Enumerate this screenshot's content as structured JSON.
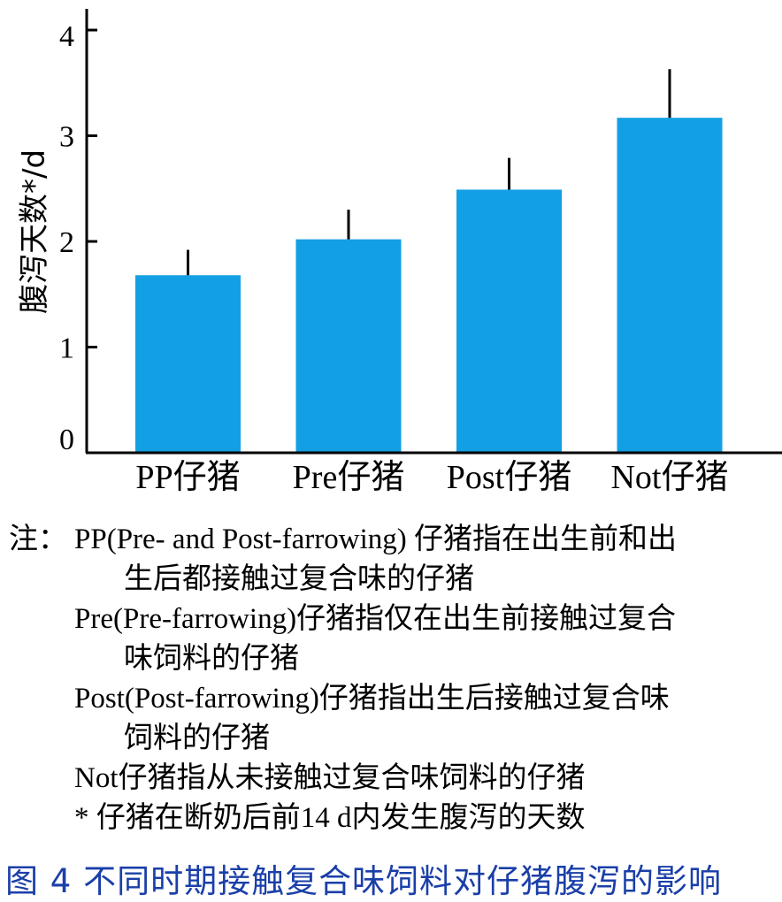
{
  "chart_data": {
    "type": "bar",
    "categories": [
      "PP仔猪",
      "Pre仔猪",
      "Post仔猪",
      "Not仔猪"
    ],
    "values": [
      1.68,
      2.02,
      2.49,
      3.17
    ],
    "errors": [
      0.24,
      0.28,
      0.3,
      0.46
    ],
    "ylabel": "腹泻天数*/d",
    "yticks": [
      "0",
      "1",
      "2",
      "3",
      "4"
    ],
    "ylim": [
      0,
      4
    ],
    "bar_color": "#139fe3",
    "grid": false
  },
  "notes": {
    "prefix": "注：",
    "note1_line1": "PP(Pre- and Post-farrowing) 仔猪指在出生前和出",
    "note1_line2": "生后都接触过复合味的仔猪",
    "note2_line1": "Pre(Pre-farrowing)仔猪指仅在出生前接触过复合",
    "note2_line2": "味饲料的仔猪",
    "note3_line1": "Post(Post-farrowing)仔猪指出生后接触过复合味",
    "note3_line2": "饲料的仔猪",
    "note4": "Not仔猪指从未接触过复合味饲料的仔猪",
    "note5": "* 仔猪在断奶后前14 d内发生腹泻的天数"
  },
  "caption": "图 4  不同时期接触复合味饲料对仔猪腹泻的影响"
}
